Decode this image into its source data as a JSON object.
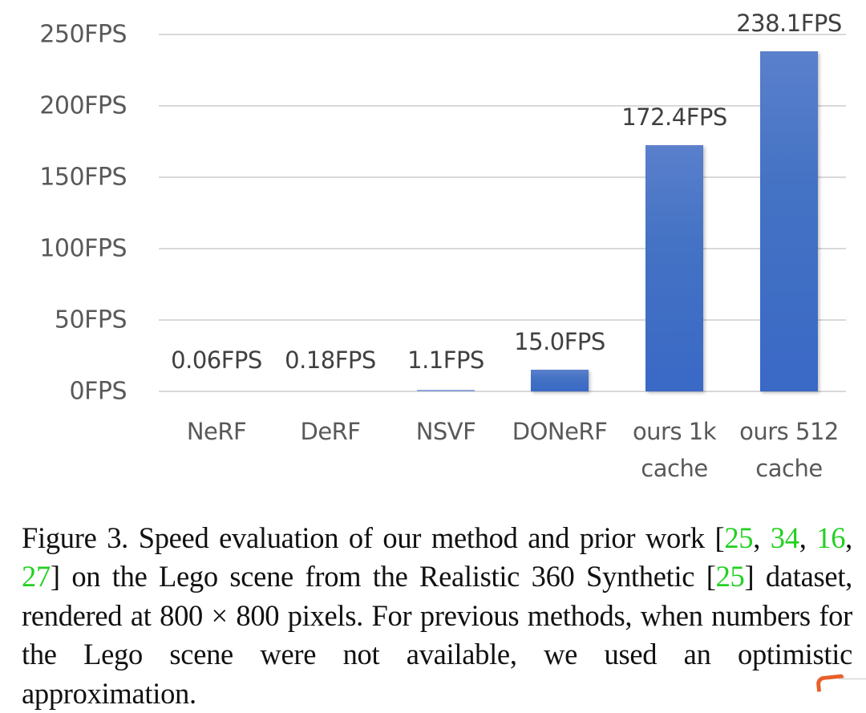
{
  "chart_data": {
    "type": "bar",
    "title": "",
    "xlabel": "",
    "ylabel": "",
    "categories": [
      "NeRF",
      "DeRF",
      "NSVF",
      "DONeRF",
      "ours 1k cache",
      "ours 512 cache"
    ],
    "category_lines": [
      [
        "NeRF"
      ],
      [
        "DeRF"
      ],
      [
        "NSVF"
      ],
      [
        "DONeRF"
      ],
      [
        "ours 1k",
        "cache"
      ],
      [
        "ours 512",
        "cache"
      ]
    ],
    "values": [
      0.06,
      0.18,
      1.1,
      15.0,
      172.4,
      238.1
    ],
    "data_labels": [
      "0.06FPS",
      "0.18FPS",
      "1.1FPS",
      "15.0FPS",
      "172.4FPS",
      "238.1FPS"
    ],
    "yticks": [
      0,
      50,
      100,
      150,
      200,
      250
    ],
    "ytick_labels": [
      "0FPS",
      "50FPS",
      "100FPS",
      "150FPS",
      "200FPS",
      "250FPS"
    ],
    "ylim": [
      0,
      250
    ],
    "grid": true,
    "legend": "none",
    "bar_color": "#4472c4"
  },
  "caption": {
    "segments": [
      {
        "text": "Figure 3. Speed evaluation of our method and prior work [",
        "ref": false
      },
      {
        "text": "25",
        "ref": true
      },
      {
        "text": ", ",
        "ref": false
      },
      {
        "text": "34",
        "ref": true
      },
      {
        "text": ", ",
        "ref": false
      },
      {
        "text": "16",
        "ref": true
      },
      {
        "text": ", ",
        "ref": false
      },
      {
        "text": "27",
        "ref": true
      },
      {
        "text": "] on the Lego scene from the Realistic 360 Synthetic [",
        "ref": false
      },
      {
        "text": "25",
        "ref": true
      },
      {
        "text": "] dataset, rendered at 800 × 800 pixels. For previous methods, when numbers for the Lego scene were not available, we used an opti­mistic approximation.",
        "ref": false
      }
    ],
    "ref_color": "#22d022"
  }
}
